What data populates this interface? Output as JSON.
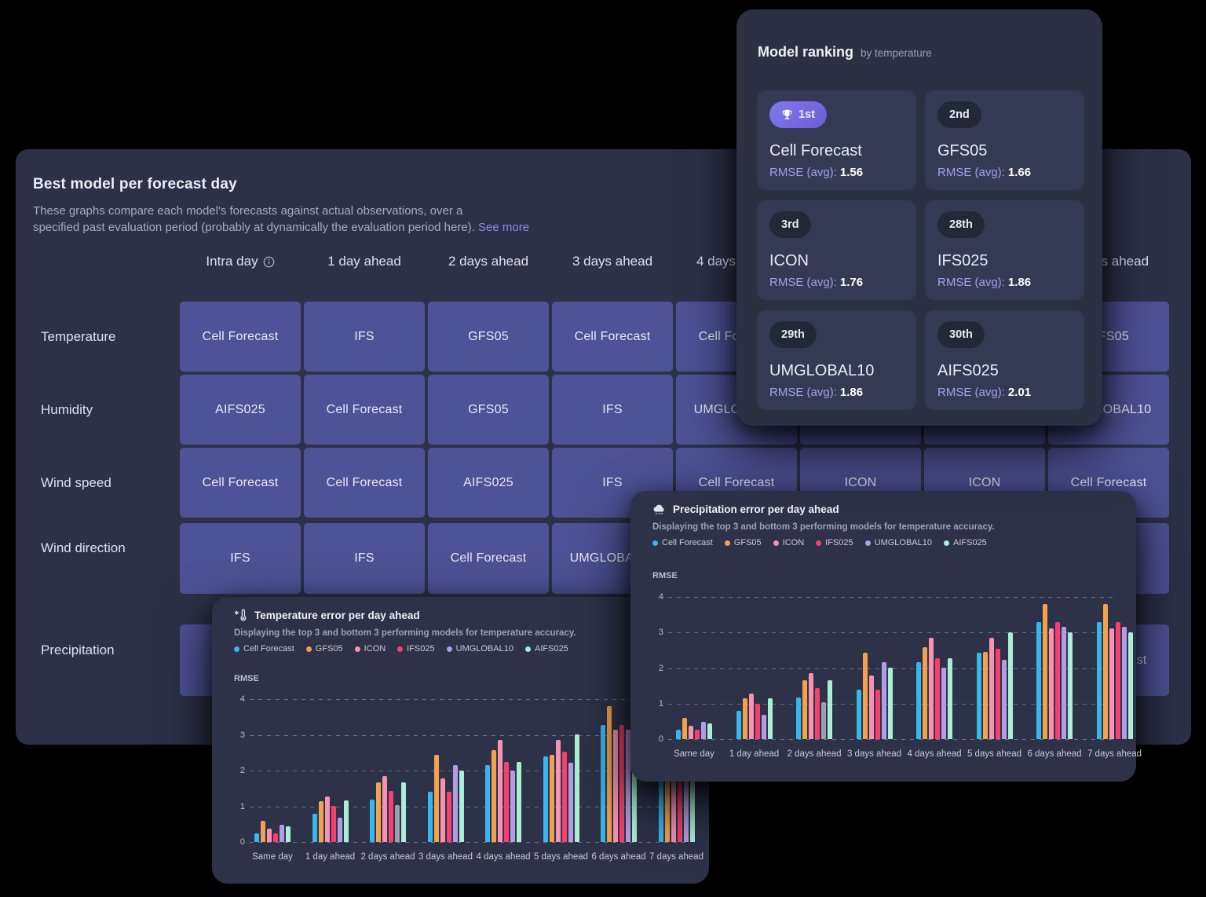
{
  "main_panel": {
    "title": "Best model per forecast day",
    "description_line1": "These graphs compare each model's forecasts against actual observations, over a",
    "description_line2": "specified past evaluation period (probably at dynamically the evaluation period here).",
    "see_more": "See more",
    "columns": [
      "Intra day",
      "1 day ahead",
      "2 days ahead",
      "3 days ahead",
      "4 days ahead",
      "5 days ahead",
      "6 days ahead",
      "7 days ahead"
    ],
    "rows": [
      {
        "label": "Temperature",
        "cells": [
          "Cell Forecast",
          "IFS",
          "GFS05",
          "Cell Forecast",
          "Cell Forecast",
          "",
          "",
          "GFS05"
        ]
      },
      {
        "label": "Humidity",
        "cells": [
          "AIFS025",
          "Cell Forecast",
          "GFS05",
          "IFS",
          "UMGLOBAL10",
          "",
          "",
          "UMGLOBAL10"
        ]
      },
      {
        "label": "Wind speed",
        "cells": [
          "Cell Forecast",
          "Cell Forecast",
          "AIFS025",
          "IFS",
          "Cell Forecast",
          "ICON",
          "ICON",
          "Cell Forecast"
        ]
      },
      {
        "label": "Wind direction",
        "cells": [
          "IFS",
          "IFS",
          "Cell Forecast",
          "UMGLOBAL10",
          "",
          "",
          "",
          ""
        ]
      },
      {
        "label": "Precipitation",
        "cells": [
          "",
          "",
          "",
          "",
          "",
          "",
          "",
          "Cell Forecast"
        ]
      }
    ]
  },
  "ranking": {
    "title": "Model ranking",
    "subtitle": "by temperature",
    "rmse_label": "RMSE (avg):",
    "entries": [
      {
        "rank": "1st",
        "model": "Cell Forecast",
        "rmse": "1.56",
        "highlight": true
      },
      {
        "rank": "2nd",
        "model": "GFS05",
        "rmse": "1.66",
        "highlight": false
      },
      {
        "rank": "3rd",
        "model": "ICON",
        "rmse": "1.76",
        "highlight": false
      },
      {
        "rank": "28th",
        "model": "IFS025",
        "rmse": "1.86",
        "highlight": false
      },
      {
        "rank": "29th",
        "model": "UMGLOBAL10",
        "rmse": "1.86",
        "highlight": false
      },
      {
        "rank": "30th",
        "model": "AIFS025",
        "rmse": "2.01",
        "highlight": false
      }
    ]
  },
  "colors": {
    "accent_link": "#8d88f3",
    "table_cell": "#4e5296",
    "muted_bar": "#9da0af",
    "badge_highlight": "#7265db"
  },
  "chart_data": [
    {
      "id": "temperature",
      "type": "bar",
      "icon": "thermometer-icon",
      "title": "Temperature error per day ahead",
      "subtitle": "Displaying the top 3 and bottom 3 performing models for temperature accuracy.",
      "ylabel": "RMSE",
      "ylim": [
        0,
        4
      ],
      "yticks": [
        0,
        1,
        2,
        3,
        4
      ],
      "grid": "horizontal-dashed",
      "legend_position": "top",
      "categories": [
        "Same day",
        "1 day ahead",
        "2 days ahead",
        "3 days ahead",
        "4 days ahead",
        "5 days ahead",
        "6 days ahead",
        "7 days ahead"
      ],
      "series": [
        {
          "name": "Cell Forecast",
          "color": "#38b6ee",
          "values": [
            0.25,
            0.8,
            1.18,
            1.4,
            2.15,
            2.4,
            3.28,
            3.3
          ]
        },
        {
          "name": "GFS05",
          "color": "#f2a14c",
          "values": [
            0.6,
            1.15,
            1.68,
            2.45,
            2.58,
            2.45,
            3.8,
            3.8
          ]
        },
        {
          "name": "ICON",
          "color": "#f593b2",
          "values": [
            0.38,
            1.28,
            1.85,
            1.78,
            2.85,
            2.85,
            3.15,
            3.12
          ]
        },
        {
          "name": "IFS025",
          "color": "#f4416d",
          "values": [
            0.25,
            1.0,
            1.43,
            1.4,
            2.25,
            2.52,
            3.28,
            3.3
          ]
        },
        {
          "name": "UMGLOBAL10",
          "color": "#b29ce4",
          "values": [
            0.48,
            0.68,
            1.04,
            2.15,
            2.0,
            2.22,
            3.15,
            3.15
          ]
        },
        {
          "name": "AIFS025",
          "color": "#aceed5",
          "values": [
            0.45,
            1.17,
            1.68,
            2.0,
            2.25,
            3.0,
            3.0,
            3.0
          ]
        }
      ],
      "muted_bars": [
        {
          "series": "UMGLOBAL10",
          "category": "2 days ahead"
        }
      ]
    },
    {
      "id": "precipitation",
      "type": "bar",
      "icon": "rain-cloud-icon",
      "title": "Precipitation error per day ahead",
      "subtitle": "Displaying the top 3 and bottom 3 performing models for temperature accuracy.",
      "ylabel": "RMSE",
      "ylim": [
        0,
        4
      ],
      "yticks": [
        0,
        1,
        2,
        3,
        4
      ],
      "grid": "horizontal-dashed",
      "legend_position": "top",
      "categories": [
        "Same day",
        "1 day ahead",
        "2 days ahead",
        "3 days ahead",
        "4 days ahead",
        "5 days ahead",
        "6 days ahead",
        "7 days ahead"
      ],
      "series": [
        {
          "name": "Cell Forecast",
          "color": "#38b6ee",
          "values": [
            0.27,
            0.8,
            1.17,
            1.4,
            2.17,
            2.43,
            3.3,
            3.3
          ]
        },
        {
          "name": "GFS05",
          "color": "#f2a14c",
          "values": [
            0.6,
            1.15,
            1.66,
            2.43,
            2.58,
            2.45,
            3.8,
            3.8
          ]
        },
        {
          "name": "ICON",
          "color": "#f593b2",
          "values": [
            0.38,
            1.28,
            1.85,
            1.78,
            2.85,
            2.85,
            3.12,
            3.12
          ]
        },
        {
          "name": "IFS025",
          "color": "#f4416d",
          "values": [
            0.27,
            1.0,
            1.43,
            1.4,
            2.27,
            2.55,
            3.3,
            3.3
          ]
        },
        {
          "name": "UMGLOBAL10",
          "color": "#b29ce4",
          "values": [
            0.48,
            0.68,
            1.03,
            2.17,
            2.0,
            2.23,
            3.15,
            3.15
          ]
        },
        {
          "name": "AIFS025",
          "color": "#aceed5",
          "values": [
            0.45,
            1.15,
            1.66,
            2.02,
            2.27,
            3.0,
            3.0,
            3.0
          ]
        }
      ],
      "muted_bars": [
        {
          "series": "UMGLOBAL10",
          "category": "2 days ahead"
        }
      ]
    }
  ]
}
